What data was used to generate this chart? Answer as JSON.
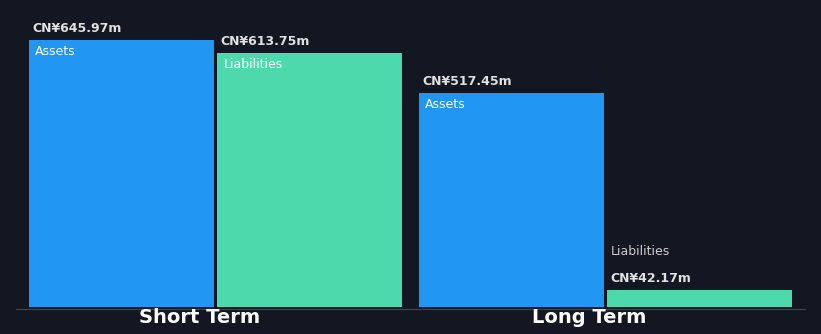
{
  "background_color": "#131722",
  "groups": [
    {
      "label": "Short Term",
      "bars": [
        {
          "name": "Assets",
          "value": 645.97,
          "color": "#2196f3",
          "label": "CN¥645.97m",
          "label_inside": true
        },
        {
          "name": "Liabilities",
          "value": 613.75,
          "color": "#4dd9ac",
          "label": "CN¥613.75m",
          "label_inside": true
        }
      ]
    },
    {
      "label": "Long Term",
      "bars": [
        {
          "name": "Assets",
          "value": 517.45,
          "color": "#2196f3",
          "label": "CN¥517.45m",
          "label_inside": true
        },
        {
          "name": "Liabilities",
          "value": 42.17,
          "color": "#4dd9ac",
          "label": "CN¥42.17m",
          "label_inside": false
        }
      ]
    }
  ],
  "max_value": 645.97,
  "text_color": "#ffffff",
  "label_color_above": "#e0e0e0",
  "inner_label_color": "#ffffff",
  "liab_label_color": "#cccccc",
  "group_label_fontsize": 14,
  "bar_label_fontsize": 9,
  "inner_label_fontsize": 9
}
